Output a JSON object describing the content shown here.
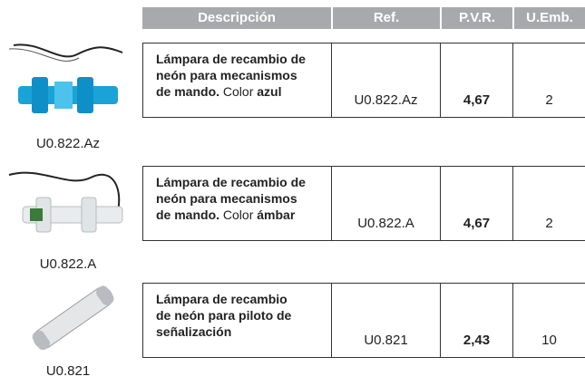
{
  "table": {
    "header": [
      "Descripción",
      "Ref.",
      "P.V.R.",
      "U.Emb."
    ],
    "rows": [
      {
        "lines": [
          [
            {
              "text": "Lámpara de recambio de",
              "bold": true
            }
          ],
          [
            {
              "text": "neón para mecanismos",
              "bold": true
            }
          ],
          [
            {
              "text": "de mando.",
              "bold": true
            },
            {
              "text": " Color ",
              "bold": false
            },
            {
              "text": "azul",
              "bold": true
            }
          ]
        ],
        "ref": "U0.822.Az",
        "price": "4,67",
        "units": "2",
        "caption": "U0.822.Az"
      },
      {
        "lines": [
          [
            {
              "text": "Lámpara de recambio de",
              "bold": true
            }
          ],
          [
            {
              "text": "neón para mecanismos",
              "bold": true
            }
          ],
          [
            {
              "text": "de mando.",
              "bold": true
            },
            {
              "text": " Color ",
              "bold": false
            },
            {
              "text": "ámbar",
              "bold": true
            }
          ]
        ],
        "ref": "U0.822.A",
        "price": "4,67",
        "units": "2",
        "caption": "U0.822.A"
      },
      {
        "lines": [
          [
            {
              "text": "Lámpara de recambio",
              "bold": true
            }
          ],
          [
            {
              "text": "de neón para piloto de",
              "bold": true
            }
          ],
          [
            {
              "text": "señalización",
              "bold": true
            }
          ]
        ],
        "ref": "U0.821",
        "price": "2,43",
        "units": "10",
        "caption": "U0.821"
      }
    ]
  }
}
